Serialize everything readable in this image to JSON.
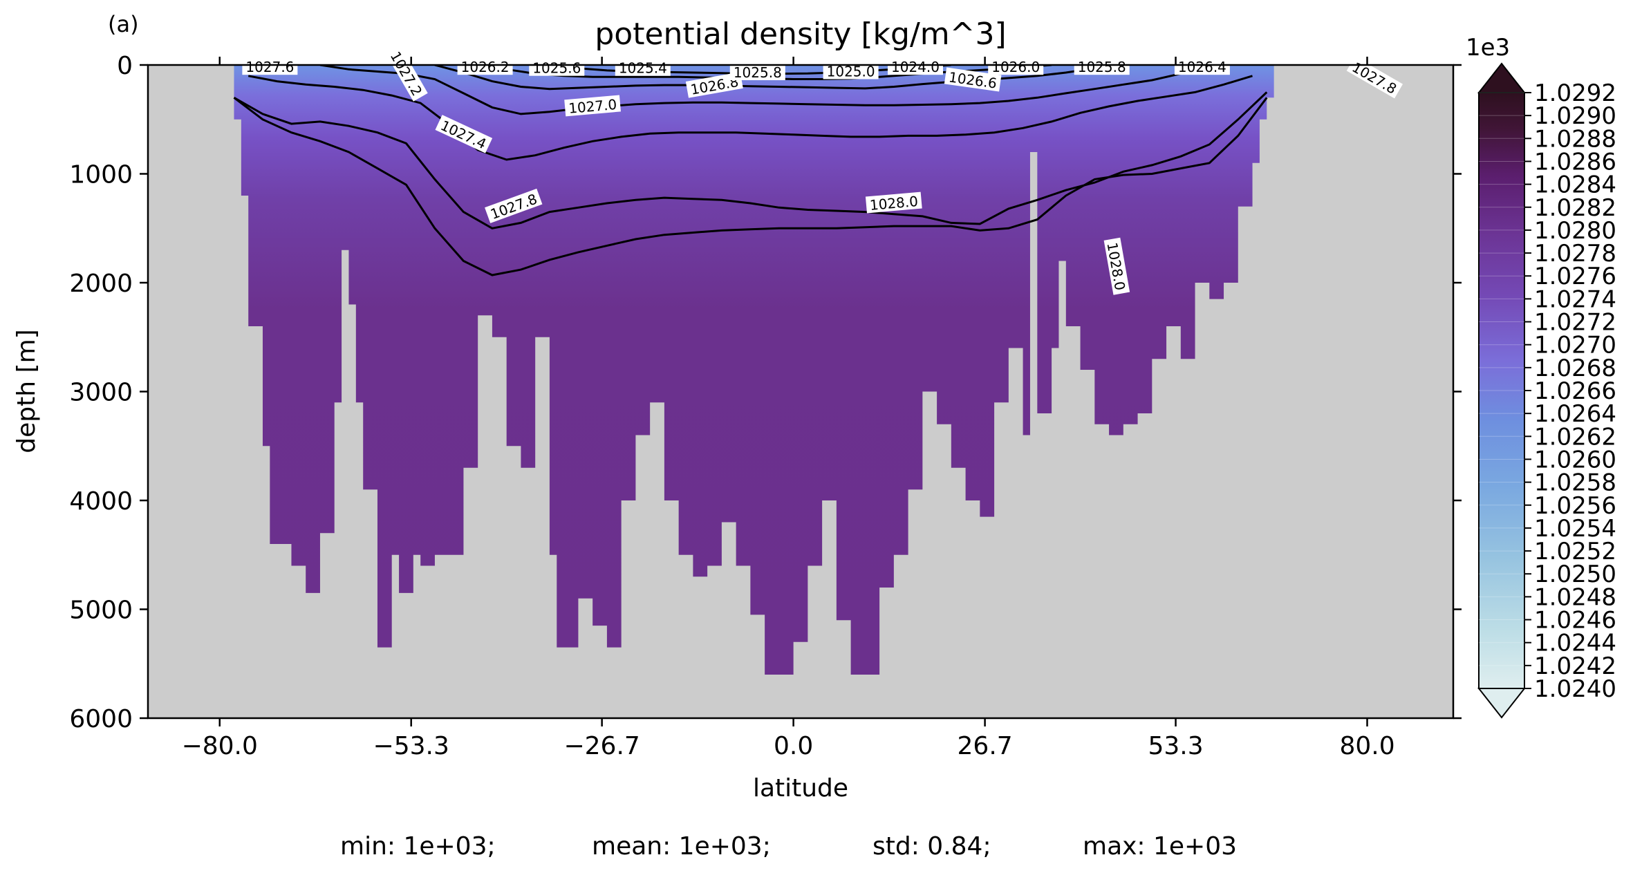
{
  "panel_label": "(a)",
  "chart_data": {
    "type": "heatmap",
    "title": "potential density [kg/m^3]",
    "xlabel": "latitude",
    "ylabel": "depth [m]",
    "xlim": [
      -90,
      92
    ],
    "ylim": [
      6000,
      0
    ],
    "xticks": [
      "-80.0",
      "-53.3",
      "-26.7",
      "0.0",
      "26.7",
      "53.3",
      "80.0"
    ],
    "yticks": [
      "0",
      "1000",
      "2000",
      "3000",
      "4000",
      "5000",
      "6000"
    ],
    "land_color": "#cccccc",
    "colorbar": {
      "multiplier": "1e3",
      "min": 1.024,
      "max": 1.0292,
      "tick_labels": [
        "1.0240",
        "1.0242",
        "1.0244",
        "1.0246",
        "1.0248",
        "1.0250",
        "1.0252",
        "1.0254",
        "1.0256",
        "1.0258",
        "1.0260",
        "1.0262",
        "1.0264",
        "1.0266",
        "1.0268",
        "1.0270",
        "1.0272",
        "1.0274",
        "1.0276",
        "1.0278",
        "1.0280",
        "1.0282",
        "1.0284",
        "1.0286",
        "1.0288",
        "1.0290",
        "1.0292"
      ],
      "extend": "both"
    },
    "ocean_bottom": {
      "latitude": [
        -78,
        -77,
        -76,
        -74,
        -73,
        -70,
        -68,
        -66,
        -64,
        -63,
        -62,
        -61,
        -60,
        -58,
        -56,
        -55,
        -54,
        -53,
        -52,
        -51,
        -50,
        -48,
        -46,
        -44,
        -42,
        -40,
        -38,
        -36,
        -34,
        -33,
        -32,
        -31,
        -30,
        -29,
        -28,
        -26,
        -24,
        -22,
        -20,
        -18,
        -16,
        -14,
        -12,
        -10,
        -8,
        -6,
        -4,
        -2,
        0,
        2,
        4,
        6,
        8,
        10,
        12,
        14,
        16,
        18,
        20,
        22,
        24,
        26,
        28,
        30,
        32,
        33,
        34,
        36,
        37,
        38,
        40,
        42,
        44,
        46,
        48,
        50,
        52,
        54,
        56,
        58,
        60,
        62,
        64,
        65,
        66,
        67
      ],
      "depth": [
        500,
        1200,
        2400,
        3500,
        4400,
        4600,
        4850,
        4300,
        3100,
        1700,
        2200,
        3100,
        3900,
        5350,
        4500,
        4850,
        4850,
        4500,
        4600,
        4600,
        4500,
        4500,
        3700,
        2300,
        2500,
        3500,
        3700,
        2500,
        4500,
        5350,
        5350,
        5350,
        4900,
        4900,
        5150,
        5350,
        4000,
        3400,
        3100,
        4000,
        4500,
        4700,
        4600,
        4200,
        4600,
        5050,
        5600,
        5600,
        5300,
        4600,
        4000,
        5100,
        5600,
        5600,
        4800,
        4500,
        3900,
        3000,
        3300,
        3700,
        4000,
        4150,
        3100,
        2600,
        3400,
        800,
        3200,
        2600,
        1800,
        2400,
        2800,
        3300,
        3400,
        3300,
        3200,
        2700,
        2400,
        2700,
        2000,
        2150,
        2000,
        1300,
        900,
        500,
        300,
        150
      ]
    },
    "contour_levels": [
      {
        "value": 1027.8,
        "label": "1027.8",
        "latitude": [
          -78,
          -74,
          -70,
          -66,
          -62,
          -58,
          -54,
          -50,
          -46,
          -42,
          -38,
          -34,
          -30,
          -26,
          -22,
          -18,
          -14,
          -10,
          -6,
          -2,
          2,
          6,
          10,
          14,
          18,
          22,
          26,
          30,
          34,
          38,
          42,
          46,
          50,
          54,
          58,
          62,
          66
        ],
        "depth": [
          300,
          450,
          540,
          520,
          560,
          620,
          720,
          1050,
          1350,
          1500,
          1450,
          1350,
          1310,
          1270,
          1240,
          1220,
          1230,
          1240,
          1270,
          1310,
          1330,
          1340,
          1350,
          1370,
          1390,
          1450,
          1460,
          1320,
          1240,
          1150,
          1080,
          980,
          920,
          840,
          730,
          500,
          250
        ]
      },
      {
        "value": 1028.0,
        "label": "1028.0",
        "latitude": [
          -78,
          -74,
          -70,
          -66,
          -62,
          -58,
          -54,
          -50,
          -46,
          -42,
          -38,
          -34,
          -30,
          -26,
          -22,
          -18,
          -14,
          -10,
          -6,
          -2,
          2,
          6,
          10,
          14,
          18,
          22,
          26,
          30,
          34,
          38,
          42,
          46,
          50,
          54,
          58,
          62,
          66
        ],
        "depth": [
          300,
          500,
          620,
          700,
          800,
          950,
          1100,
          1500,
          1800,
          1930,
          1880,
          1790,
          1720,
          1660,
          1600,
          1560,
          1540,
          1520,
          1510,
          1500,
          1500,
          1500,
          1490,
          1480,
          1480,
          1480,
          1520,
          1500,
          1420,
          1200,
          1050,
          1010,
          1000,
          950,
          900,
          650,
          300
        ]
      },
      {
        "value": 1027.4,
        "label": "1027.4",
        "latitude": [
          -76,
          -72,
          -68,
          -64,
          -60,
          -56,
          -52,
          -48,
          -44,
          -40,
          -36,
          -32,
          -28,
          -24,
          -20,
          -16,
          -12,
          -8,
          -4,
          0,
          4,
          8,
          12,
          16,
          20,
          24,
          28,
          32,
          36,
          40,
          44,
          48,
          52,
          56,
          60,
          64
        ],
        "depth": [
          100,
          150,
          180,
          200,
          230,
          280,
          350,
          550,
          780,
          870,
          830,
          760,
          700,
          660,
          630,
          620,
          620,
          620,
          630,
          640,
          650,
          660,
          660,
          650,
          650,
          640,
          620,
          580,
          520,
          440,
          380,
          330,
          290,
          250,
          180,
          100
        ]
      },
      {
        "value": 1027.0,
        "label": "1027.0",
        "latitude": [
          -66,
          -62,
          -58,
          -54,
          -50,
          -46,
          -42,
          -38,
          -34,
          -30,
          -26,
          -22,
          -18,
          -14,
          -10,
          -6,
          -2,
          2,
          6,
          10,
          14,
          18,
          22,
          26,
          30,
          34,
          38,
          42,
          46,
          50,
          54,
          58
        ],
        "depth": [
          0,
          40,
          60,
          80,
          130,
          260,
          390,
          450,
          430,
          400,
          380,
          360,
          350,
          345,
          345,
          350,
          355,
          360,
          365,
          370,
          370,
          365,
          360,
          350,
          330,
          300,
          260,
          220,
          180,
          140,
          80,
          0
        ]
      },
      {
        "value": 1026.6,
        "label": "1026.6",
        "latitude": [
          -50,
          -46,
          -42,
          -38,
          -34,
          -30,
          -26,
          -22,
          -18,
          -14,
          -10,
          -6,
          -2,
          2,
          6,
          10,
          14,
          18,
          22,
          26,
          30,
          34,
          38,
          42,
          46
        ],
        "depth": [
          0,
          70,
          150,
          200,
          220,
          210,
          200,
          190,
          185,
          185,
          190,
          195,
          200,
          205,
          210,
          215,
          200,
          175,
          155,
          140,
          120,
          100,
          70,
          30,
          0
        ]
      },
      {
        "value": 1026.2,
        "label": "1026.2",
        "latitude": [
          -44,
          -40,
          -36,
          -32,
          -28,
          -24,
          -20,
          -16,
          -12,
          -8,
          -4,
          0,
          4,
          8,
          12,
          16,
          20,
          24,
          28,
          32,
          36
        ],
        "depth": [
          0,
          40,
          80,
          100,
          110,
          110,
          110,
          110,
          115,
          120,
          125,
          130,
          130,
          125,
          110,
          90,
          70,
          55,
          40,
          20,
          0
        ]
      },
      {
        "value": 1025.6,
        "label": "1025.6",
        "latitude": [
          -34,
          -30,
          -26,
          -22,
          -18,
          -14,
          -10,
          -6,
          -2,
          2,
          6,
          10,
          14,
          18,
          22
        ],
        "depth": [
          0,
          30,
          50,
          60,
          65,
          70,
          75,
          80,
          80,
          78,
          70,
          55,
          40,
          20,
          0
        ]
      }
    ],
    "contour_labels": [
      {
        "text": "1027.6",
        "latitude": -73,
        "depth": 20,
        "angle": 0
      },
      {
        "text": "1027.2",
        "latitude": -54,
        "depth": 80,
        "angle": 60
      },
      {
        "text": "1026.2",
        "latitude": -43,
        "depth": 20,
        "angle": 0
      },
      {
        "text": "1025.6",
        "latitude": -33,
        "depth": 30,
        "angle": 0
      },
      {
        "text": "1025.4",
        "latitude": -21,
        "depth": 30,
        "angle": 0
      },
      {
        "text": "1027.0",
        "latitude": -28,
        "depth": 380,
        "angle": -5
      },
      {
        "text": "1026.8",
        "latitude": -11,
        "depth": 190,
        "angle": -10
      },
      {
        "text": "1025.8",
        "latitude": -5,
        "depth": 70,
        "angle": 0
      },
      {
        "text": "1025.0",
        "latitude": 8,
        "depth": 60,
        "angle": 0
      },
      {
        "text": "1027.4",
        "latitude": -46,
        "depth": 640,
        "angle": 25
      },
      {
        "text": "1027.8",
        "latitude": -39,
        "depth": 1300,
        "angle": -20
      },
      {
        "text": "1028.0",
        "latitude": 14,
        "depth": 1270,
        "angle": -5
      },
      {
        "text": "1024.0",
        "latitude": 17,
        "depth": 20,
        "angle": 0
      },
      {
        "text": "1026.6",
        "latitude": 25,
        "depth": 140,
        "angle": 8
      },
      {
        "text": "1026.0",
        "latitude": 31,
        "depth": 20,
        "angle": 0
      },
      {
        "text": "1025.8",
        "latitude": 43,
        "depth": 20,
        "angle": 0
      },
      {
        "text": "1026.4",
        "latitude": 57,
        "depth": 20,
        "angle": 0
      },
      {
        "text": "1028.0",
        "latitude": 45,
        "depth": 1850,
        "angle": 80
      },
      {
        "text": "1027.8",
        "latitude": 81,
        "depth": 120,
        "angle": 30
      }
    ]
  },
  "stats": {
    "min": "min: 1e+03;",
    "mean": "mean: 1e+03;",
    "std": "std: 0.84;",
    "max": "max: 1e+03"
  }
}
